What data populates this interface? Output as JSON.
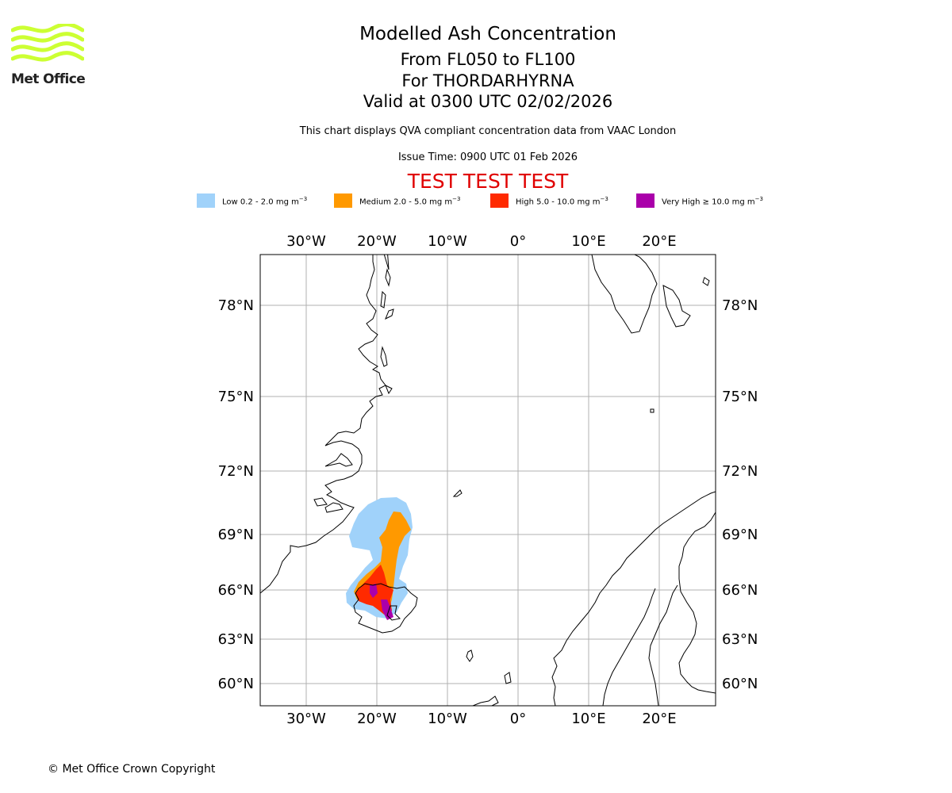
{
  "logo": {
    "text": "Met Office",
    "icon": "met-office-wave-logo",
    "color": "#ccff33"
  },
  "header": {
    "title": "Modelled Ash Concentration",
    "levels": "From FL050 to FL100",
    "volcano": "For THORDARHYRNA",
    "valid": "Valid at 0300 UTC 02/02/2026",
    "description": "This chart displays QVA compliant concentration data from VAAC London",
    "issue_time": "Issue Time: 0900 UTC 01 Feb 2026",
    "test_banner": "TEST TEST TEST"
  },
  "legend": [
    {
      "label": "Low 0.2 - 2.0 mg m",
      "color": "#a0d2fa"
    },
    {
      "label": "Medium 2.0 - 5.0 mg m",
      "color": "#ff9900"
    },
    {
      "label": "High 5.0 - 10.0 mg m",
      "color": "#ff2a00"
    },
    {
      "label": "Very High ≥ 10.0 mg m",
      "color": "#aa00aa"
    }
  ],
  "legend_unit_exponent": "−3",
  "map": {
    "lon_ticks": [
      "30°W",
      "20°W",
      "10°W",
      "0°",
      "10°E",
      "20°E"
    ],
    "lat_ticks": [
      "78°N",
      "75°N",
      "72°N",
      "69°N",
      "66°N",
      "63°N",
      "60°N"
    ],
    "grid_color": "#b0b0b0"
  },
  "footer": {
    "copyright": "© Met Office Crown Copyright"
  }
}
